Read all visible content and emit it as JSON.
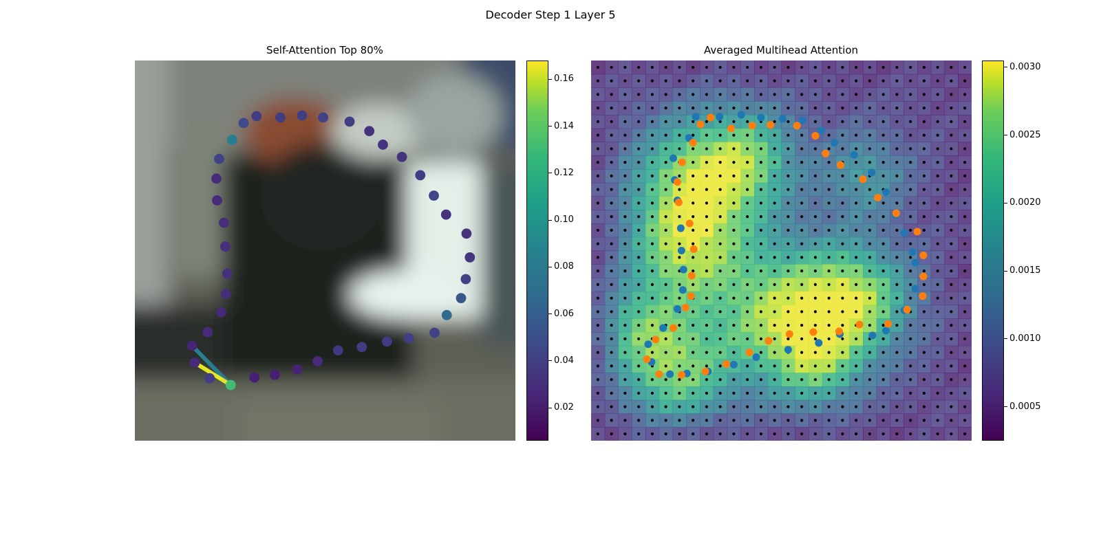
{
  "figure": {
    "title": "Decoder Step 1 Layer 5"
  },
  "chart_data": [
    {
      "type": "scatter",
      "title": "Self-Attention Top 80%",
      "xlim": [
        0,
        560
      ],
      "ylim": [
        560,
        0
      ],
      "axes_visible": false,
      "background": "blurred photo (road scene)",
      "colormap": "viridis",
      "colorbar": {
        "min": 0.006,
        "max": 0.168,
        "ticks": [
          "0.02",
          "0.04",
          "0.06",
          "0.08",
          "0.10",
          "0.12",
          "0.14",
          "0.16"
        ]
      },
      "query_point": {
        "x": 141,
        "y": 478,
        "value": 0.118
      },
      "points": [
        {
          "x": 179,
          "y": 82,
          "v": 0.035
        },
        {
          "x": 214,
          "y": 84,
          "v": 0.035
        },
        {
          "x": 246,
          "y": 81,
          "v": 0.036
        },
        {
          "x": 277,
          "y": 84,
          "v": 0.038
        },
        {
          "x": 316,
          "y": 90,
          "v": 0.036
        },
        {
          "x": 345,
          "y": 104,
          "v": 0.03
        },
        {
          "x": 365,
          "y": 124,
          "v": 0.03
        },
        {
          "x": 393,
          "y": 142,
          "v": 0.03
        },
        {
          "x": 420,
          "y": 169,
          "v": 0.035
        },
        {
          "x": 440,
          "y": 199,
          "v": 0.04
        },
        {
          "x": 458,
          "y": 227,
          "v": 0.03
        },
        {
          "x": 488,
          "y": 255,
          "v": 0.03
        },
        {
          "x": 493,
          "y": 290,
          "v": 0.032
        },
        {
          "x": 487,
          "y": 322,
          "v": 0.038
        },
        {
          "x": 480,
          "y": 350,
          "v": 0.05
        },
        {
          "x": 459,
          "y": 375,
          "v": 0.062
        },
        {
          "x": 441,
          "y": 401,
          "v": 0.038
        },
        {
          "x": 403,
          "y": 409,
          "v": 0.036
        },
        {
          "x": 371,
          "y": 414,
          "v": 0.034
        },
        {
          "x": 334,
          "y": 422,
          "v": 0.035
        },
        {
          "x": 299,
          "y": 427,
          "v": 0.033
        },
        {
          "x": 269,
          "y": 443,
          "v": 0.025
        },
        {
          "x": 239,
          "y": 455,
          "v": 0.022
        },
        {
          "x": 206,
          "y": 463,
          "v": 0.02
        },
        {
          "x": 176,
          "y": 467,
          "v": 0.02
        },
        {
          "x": 110,
          "y": 468,
          "v": 0.035
        },
        {
          "x": 88,
          "y": 445,
          "v": 0.025
        },
        {
          "x": 84,
          "y": 420,
          "v": 0.022
        },
        {
          "x": 107,
          "y": 400,
          "v": 0.025
        },
        {
          "x": 127,
          "y": 371,
          "v": 0.025
        },
        {
          "x": 134,
          "y": 344,
          "v": 0.027
        },
        {
          "x": 136,
          "y": 314,
          "v": 0.028
        },
        {
          "x": 133,
          "y": 274,
          "v": 0.027
        },
        {
          "x": 131,
          "y": 239,
          "v": 0.027
        },
        {
          "x": 121,
          "y": 206,
          "v": 0.025
        },
        {
          "x": 120,
          "y": 174,
          "v": 0.025
        },
        {
          "x": 124,
          "y": 145,
          "v": 0.038
        },
        {
          "x": 143,
          "y": 117,
          "v": 0.075
        },
        {
          "x": 160,
          "y": 92,
          "v": 0.042
        }
      ],
      "links": [
        {
          "x": 84,
          "y": 420,
          "v": 0.075
        },
        {
          "x": 88,
          "y": 445,
          "v": 0.162
        }
      ]
    },
    {
      "type": "heatmap",
      "title": "Averaged Multihead Attention",
      "rows": 28,
      "cols": 28,
      "axes_visible": false,
      "colormap": "viridis",
      "colorbar": {
        "min": 0.00025,
        "max": 0.00305,
        "ticks": [
          "0.0005",
          "0.0010",
          "0.0015",
          "0.0020",
          "0.0025",
          "0.0030"
        ]
      },
      "hotspots": [
        {
          "cx": 0.28,
          "cy": 0.33,
          "r": 0.12,
          "w": 1.0
        },
        {
          "cx": 0.24,
          "cy": 0.52,
          "r": 0.1,
          "w": 0.7
        },
        {
          "cx": 0.5,
          "cy": 0.67,
          "r": 0.13,
          "w": 0.95
        },
        {
          "cx": 0.7,
          "cy": 0.63,
          "r": 0.1,
          "w": 0.85
        },
        {
          "cx": 0.22,
          "cy": 0.82,
          "r": 0.1,
          "w": 0.8
        },
        {
          "cx": 0.42,
          "cy": 0.25,
          "r": 0.09,
          "w": 0.55
        },
        {
          "cx": 0.72,
          "cy": 0.3,
          "r": 0.08,
          "w": 0.45
        },
        {
          "cx": 0.12,
          "cy": 0.7,
          "r": 0.08,
          "w": 0.5
        },
        {
          "cx": 0.6,
          "cy": 0.8,
          "r": 0.08,
          "w": 0.5
        }
      ],
      "series": [
        {
          "name": "",
          "color": "#1f77b4",
          "points": [
            [
              154,
              83
            ],
            [
              189,
              83
            ],
            [
              221,
              80
            ],
            [
              250,
              84
            ],
            [
              282,
              86
            ],
            [
              311,
              88
            ],
            [
              339,
              103
            ],
            [
              358,
              121
            ],
            [
              387,
              139
            ],
            [
              413,
              165
            ],
            [
              434,
              194
            ],
            [
              448,
              228
            ],
            [
              461,
              254
            ],
            [
              473,
              282
            ],
            [
              477,
              298
            ],
            [
              477,
              336
            ],
            [
              461,
              368
            ],
            [
              434,
              398
            ],
            [
              414,
              405
            ],
            [
              366,
              403
            ],
            [
              335,
              416
            ],
            [
              290,
              426
            ],
            [
              243,
              437
            ],
            [
              210,
              448
            ],
            [
              172,
              458
            ],
            [
              141,
              461
            ],
            [
              116,
              462
            ],
            [
              89,
              444
            ],
            [
              84,
              418
            ],
            [
              106,
              394
            ],
            [
              127,
              366
            ],
            [
              135,
              338
            ],
            [
              136,
              308
            ],
            [
              133,
              280
            ],
            [
              132,
              247
            ],
            [
              127,
              206
            ],
            [
              123,
              176
            ],
            [
              121,
              144
            ],
            [
              144,
              114
            ]
          ]
        },
        {
          "name": "",
          "color": "#ff7f0e",
          "points": [
            [
              161,
              94
            ],
            [
              176,
              84
            ],
            [
              206,
              100
            ],
            [
              237,
              96
            ],
            [
              264,
              95
            ],
            [
              303,
              96
            ],
            [
              330,
              111
            ],
            [
              345,
              137
            ],
            [
              367,
              154
            ],
            [
              400,
              175
            ],
            [
              422,
              202
            ],
            [
              449,
              225
            ],
            [
              480,
              252
            ],
            [
              489,
              287
            ],
            [
              489,
              318
            ],
            [
              488,
              347
            ],
            [
              465,
              367
            ],
            [
              437,
              388
            ],
            [
              395,
              389
            ],
            [
              365,
              399
            ],
            [
              327,
              400
            ],
            [
              292,
              403
            ],
            [
              261,
              413
            ],
            [
              233,
              430
            ],
            [
              199,
              447
            ],
            [
              168,
              458
            ],
            [
              133,
              463
            ],
            [
              100,
              462
            ],
            [
              82,
              440
            ],
            [
              95,
              411
            ],
            [
              121,
              394
            ],
            [
              139,
              364
            ],
            [
              147,
              347
            ],
            [
              148,
              317
            ],
            [
              151,
              278
            ],
            [
              145,
              240
            ],
            [
              129,
              209
            ],
            [
              127,
              179
            ],
            [
              134,
              150
            ],
            [
              150,
              121
            ]
          ]
        }
      ]
    }
  ]
}
